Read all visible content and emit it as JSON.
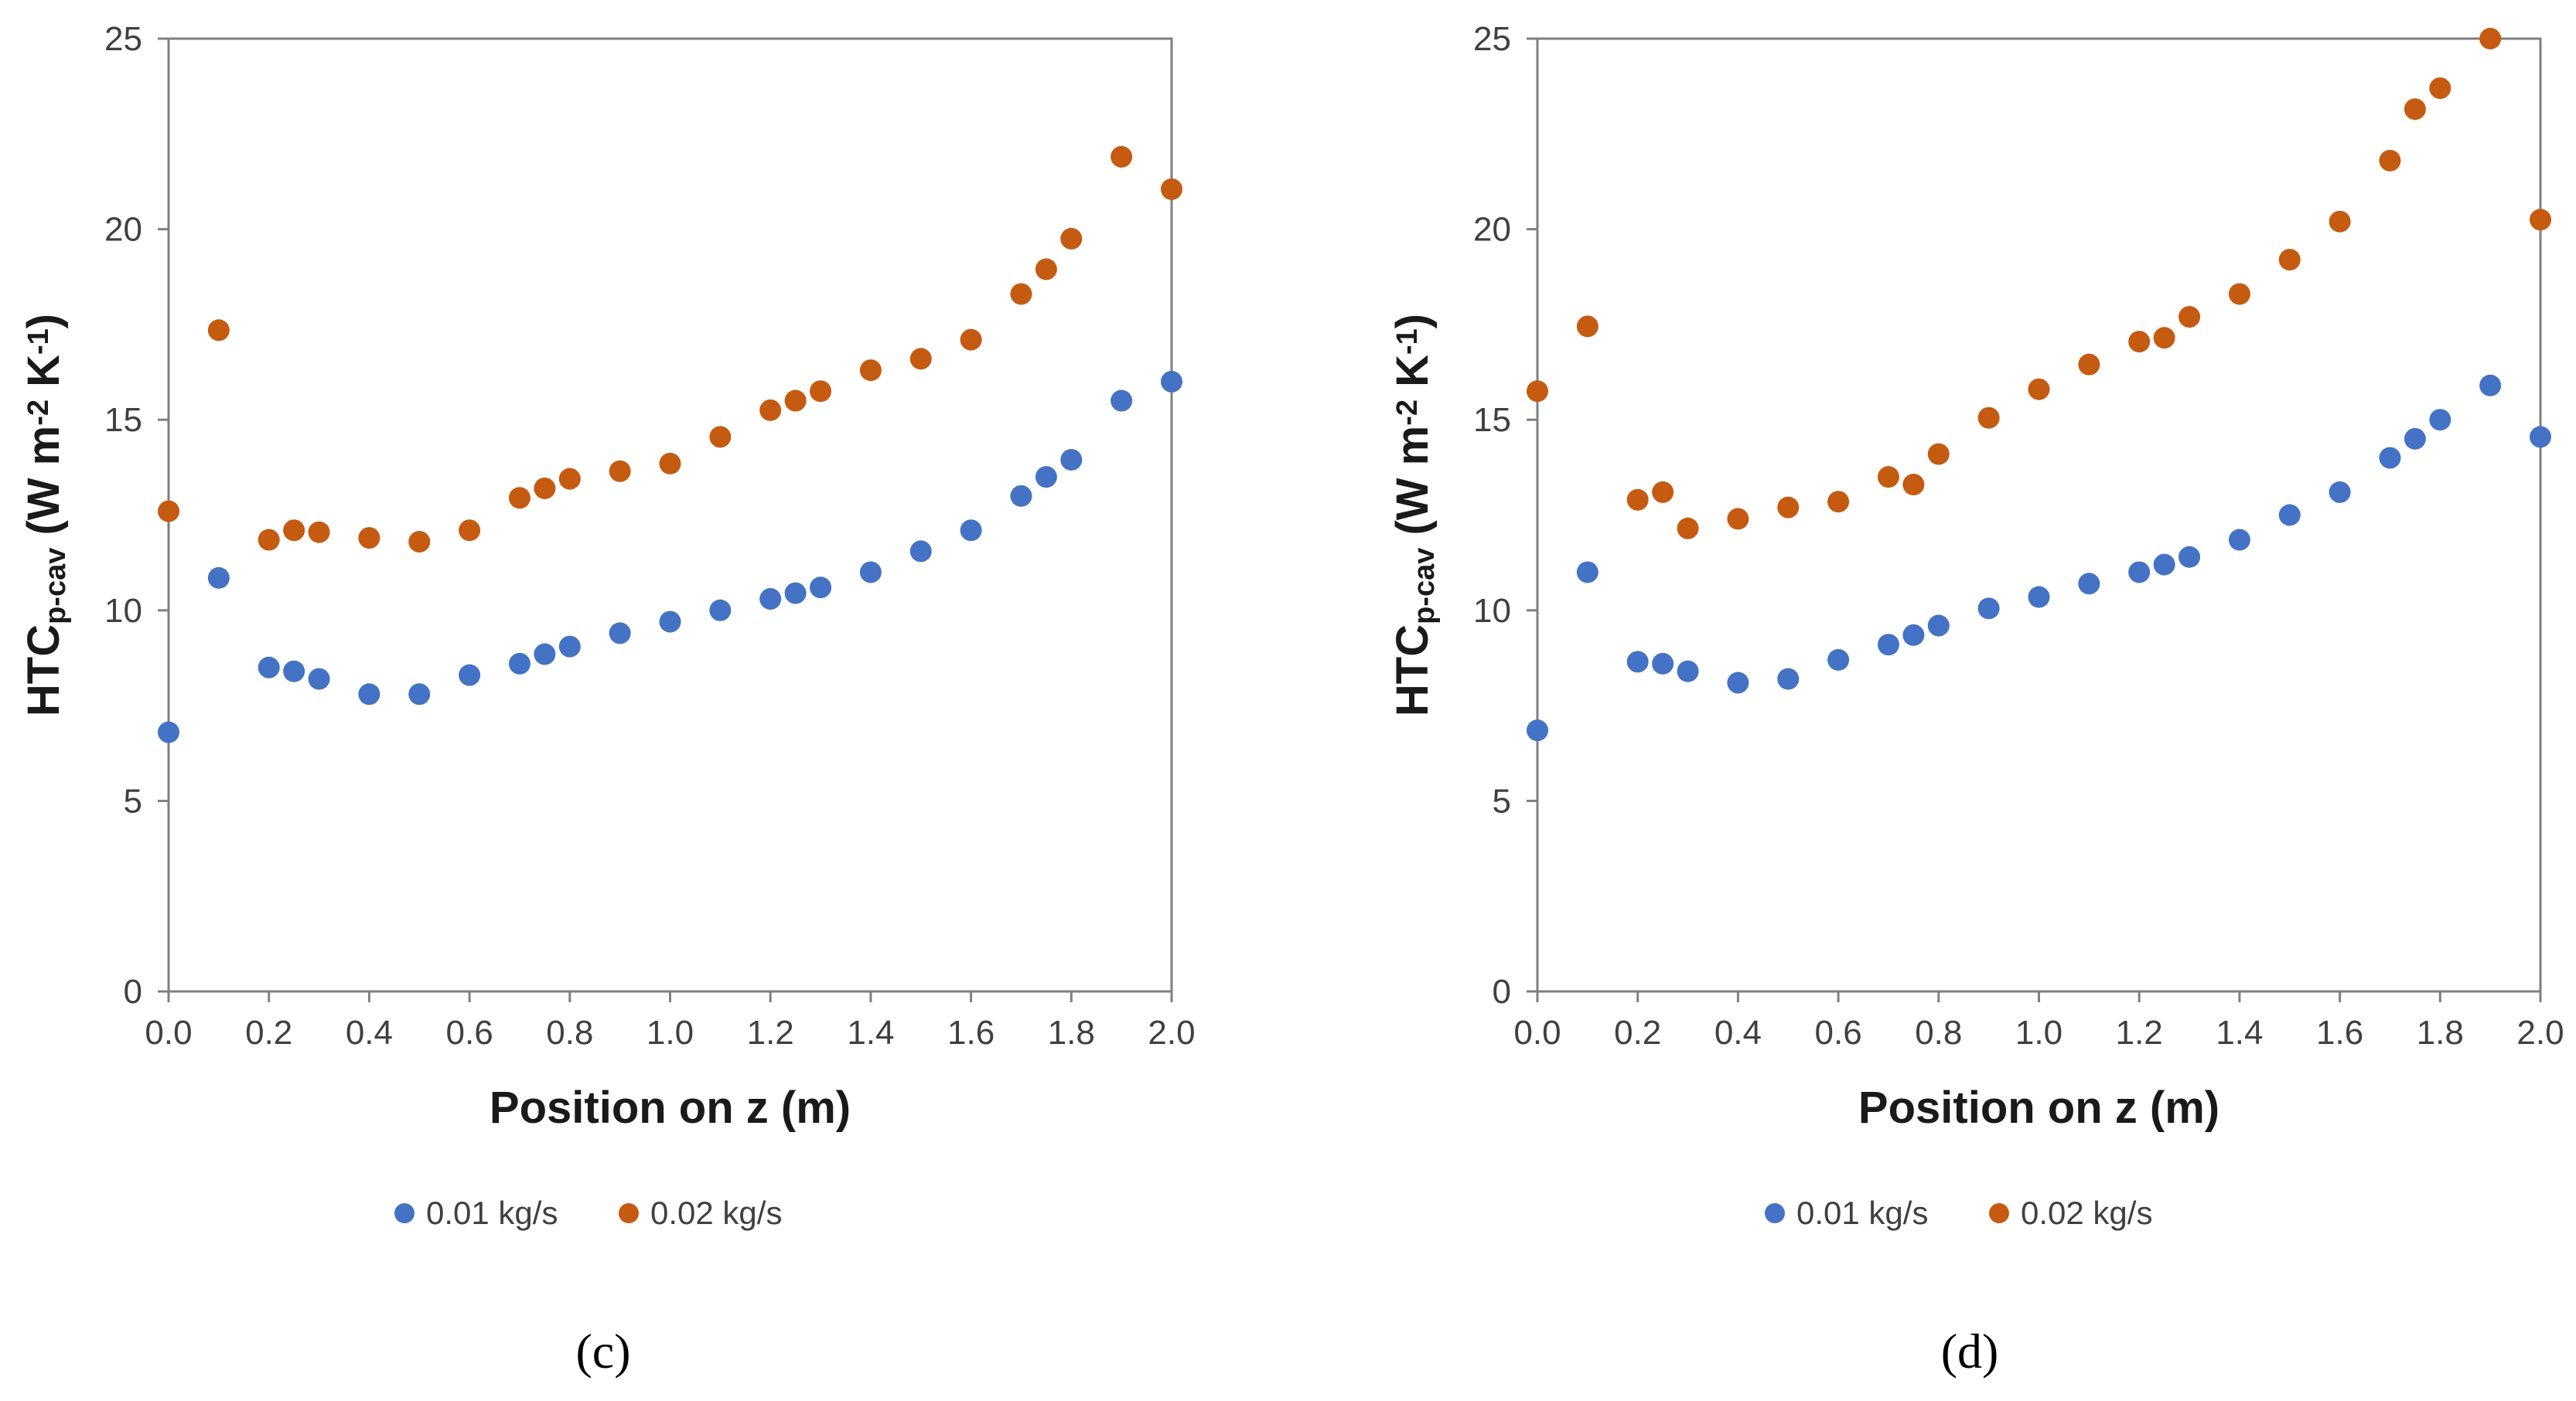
{
  "chart_data": [
    {
      "type": "scatter",
      "panel_label": "(c)",
      "xlabel": "Position on z (m)",
      "ylabel": {
        "main": "HTC",
        "sub": "p-cav",
        "units_a": " (W m",
        "sup_a": "-2",
        "units_b": " K",
        "sup_b": "-1",
        "units_c": ")"
      },
      "xlim": [
        0.0,
        2.0
      ],
      "ylim": [
        0,
        25
      ],
      "xticks": [
        "0.0",
        "0.2",
        "0.4",
        "0.6",
        "0.8",
        "1.0",
        "1.2",
        "1.4",
        "1.6",
        "1.8",
        "2.0"
      ],
      "yticks": [
        "0",
        "5",
        "10",
        "15",
        "20",
        "25"
      ],
      "legend_position": "bottom",
      "x": [
        0.0,
        0.1,
        0.2,
        0.25,
        0.3,
        0.4,
        0.5,
        0.6,
        0.7,
        0.75,
        0.8,
        0.9,
        1.0,
        1.1,
        1.2,
        1.25,
        1.3,
        1.4,
        1.5,
        1.6,
        1.7,
        1.75,
        1.8,
        1.9,
        2.0
      ],
      "series": [
        {
          "name": "0.01 kg/s",
          "color": "#4472C4",
          "values": [
            6.8,
            10.85,
            8.5,
            8.4,
            8.2,
            7.8,
            7.8,
            8.3,
            8.6,
            8.85,
            9.05,
            9.4,
            9.7,
            10.0,
            10.3,
            10.45,
            10.6,
            11.0,
            11.55,
            12.1,
            13.0,
            13.5,
            13.95,
            15.5,
            16.0
          ]
        },
        {
          "name": "0.02 kg/s",
          "color": "#C55A11",
          "values": [
            12.6,
            17.35,
            11.85,
            12.1,
            12.05,
            11.9,
            11.8,
            12.1,
            12.95,
            13.2,
            13.45,
            13.65,
            13.85,
            14.55,
            15.25,
            15.5,
            15.75,
            16.3,
            16.6,
            17.1,
            18.3,
            18.95,
            19.75,
            21.9,
            21.05
          ]
        }
      ]
    },
    {
      "type": "scatter",
      "panel_label": "(d)",
      "xlabel": "Position on z (m)",
      "ylabel": {
        "main": "HTC",
        "sub": "p-cav",
        "units_a": " (W m",
        "sup_a": "-2",
        "units_b": " K",
        "sup_b": "-1",
        "units_c": ")"
      },
      "xlim": [
        0.0,
        2.0
      ],
      "ylim": [
        0,
        25
      ],
      "xticks": [
        "0.0",
        "0.2",
        "0.4",
        "0.6",
        "0.8",
        "1.0",
        "1.2",
        "1.4",
        "1.6",
        "1.8",
        "2.0"
      ],
      "yticks": [
        "0",
        "5",
        "10",
        "15",
        "20",
        "25"
      ],
      "legend_position": "bottom",
      "x": [
        0.0,
        0.1,
        0.2,
        0.25,
        0.3,
        0.4,
        0.5,
        0.6,
        0.7,
        0.75,
        0.8,
        0.9,
        1.0,
        1.1,
        1.2,
        1.25,
        1.3,
        1.4,
        1.5,
        1.6,
        1.7,
        1.75,
        1.8,
        1.9,
        2.0
      ],
      "series": [
        {
          "name": "0.01 kg/s",
          "color": "#4472C4",
          "values": [
            6.85,
            11.0,
            8.65,
            8.6,
            8.4,
            8.1,
            8.2,
            8.7,
            9.1,
            9.35,
            9.6,
            10.05,
            10.35,
            10.7,
            11.0,
            11.2,
            11.4,
            11.85,
            12.5,
            13.1,
            14.0,
            14.5,
            15.0,
            15.9,
            14.55
          ]
        },
        {
          "name": "0.02 kg/s",
          "color": "#C55A11",
          "values": [
            15.75,
            17.45,
            12.9,
            13.1,
            12.15,
            12.4,
            12.7,
            12.85,
            13.5,
            13.3,
            14.1,
            15.05,
            15.8,
            16.45,
            17.05,
            17.15,
            17.7,
            18.3,
            19.2,
            20.2,
            21.8,
            23.15,
            23.7,
            25.0,
            20.25
          ]
        }
      ]
    }
  ]
}
